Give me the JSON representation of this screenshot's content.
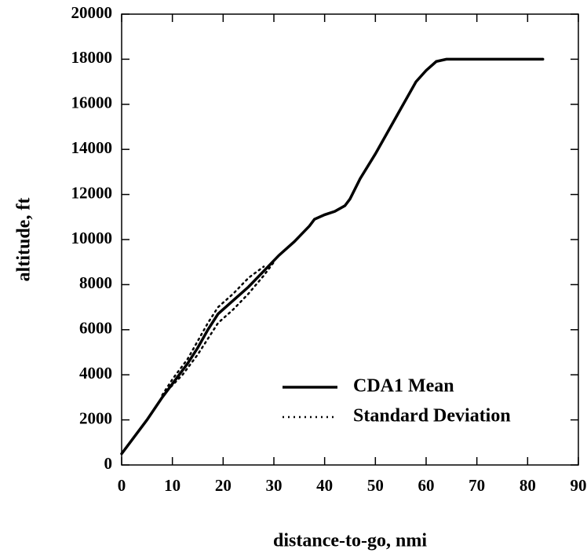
{
  "chart_data": {
    "type": "line",
    "xlabel": "distance-to-go, nmi",
    "ylabel": "altitude, ft",
    "xlim": [
      0,
      90
    ],
    "xticks": [
      0,
      10,
      20,
      30,
      40,
      50,
      60,
      70,
      80,
      90
    ],
    "ylim": [
      0,
      20000
    ],
    "yticks": [
      0,
      2000,
      4000,
      6000,
      8000,
      10000,
      12000,
      14000,
      16000,
      18000,
      20000
    ],
    "legend": "lower right",
    "series": [
      {
        "name": "CDA1 Mean",
        "color": "#000000",
        "style": "solid",
        "x": [
          0,
          2,
          5,
          8,
          10,
          13,
          15,
          17,
          19,
          22,
          25,
          28,
          31,
          34,
          37,
          38,
          40,
          42,
          44,
          45,
          47,
          50,
          55,
          58,
          60,
          62,
          64,
          66,
          83
        ],
        "values": [
          500,
          1100,
          2000,
          3000,
          3600,
          4500,
          5200,
          6000,
          6700,
          7300,
          7900,
          8600,
          9300,
          9900,
          10600,
          10900,
          11100,
          11250,
          11500,
          11800,
          12700,
          13800,
          15800,
          17000,
          17500,
          17900,
          18000,
          18000,
          18000
        ]
      },
      {
        "name": "Standard Deviation",
        "color": "#000000",
        "style": "dotted",
        "x": [
          8,
          10,
          13,
          15,
          17,
          19,
          22,
          25,
          28
        ],
        "values": [
          3100,
          3800,
          4700,
          5500,
          6300,
          7000,
          7600,
          8300,
          8800
        ]
      },
      {
        "color": "#000000",
        "style": "dotted",
        "x": [
          9,
          12,
          15,
          17,
          19,
          22,
          25,
          28,
          30
        ],
        "values": [
          3300,
          4000,
          4900,
          5600,
          6300,
          6900,
          7600,
          8400,
          9000
        ]
      }
    ]
  }
}
